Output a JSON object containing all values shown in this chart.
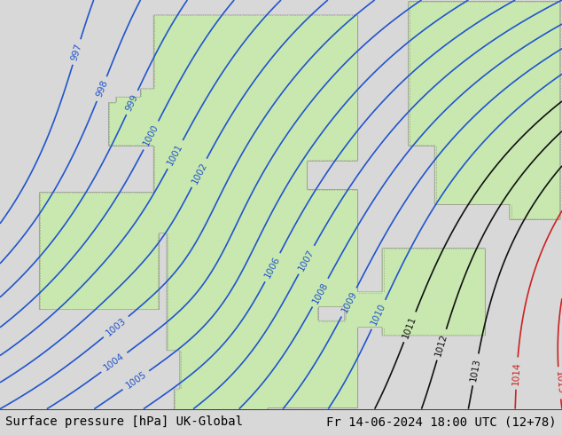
{
  "title_left": "Surface pressure [hPa] UK-Global",
  "title_right": "Fr 14-06-2024 18:00 UTC (12+78)",
  "title_fontsize": 10,
  "background_color": "#d8d8d8",
  "land_color": "#c8e8b0",
  "coastline_color": "#a0a080",
  "blue_isobar_color": "#2255cc",
  "black_isobar_color": "#111111",
  "red_isobar_color": "#cc2222",
  "isobar_linewidth": 1.2,
  "label_fontsize": 7.5,
  "figsize": [
    6.34,
    4.9
  ],
  "dpi": 100
}
